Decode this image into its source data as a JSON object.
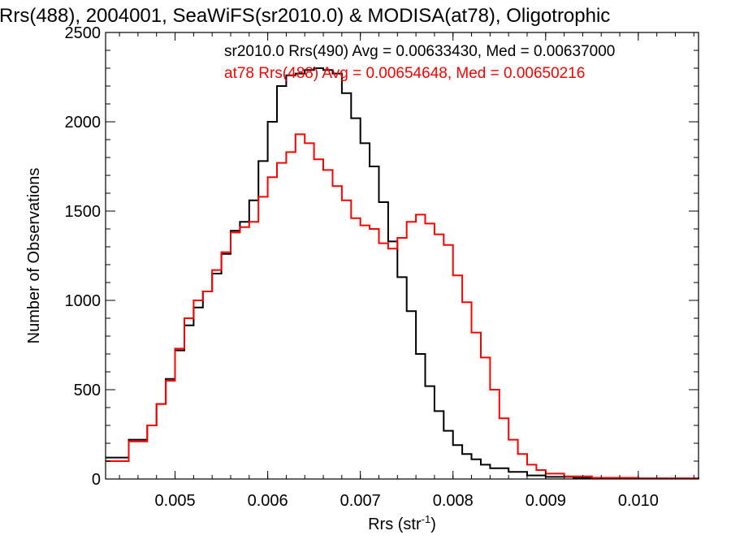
{
  "chart_data": {
    "type": "line",
    "title": "Rrs(488), 2004001, SeaWiFS(sr2010.0) & MODISA(at78), Oligotrophic",
    "xlabel": "Rrs (str",
    "xlabel_sup": "-1",
    "xlabel_end": ")",
    "ylabel": "Number of Observations",
    "xlim": [
      0.00425,
      0.01065
    ],
    "ylim": [
      0,
      2500
    ],
    "xticks": [
      0.005,
      0.006,
      0.007,
      0.008,
      0.009,
      0.01
    ],
    "xtick_labels": [
      "0.005",
      "0.006",
      "0.007",
      "0.008",
      "0.009",
      "0.010"
    ],
    "yticks": [
      0,
      500,
      1000,
      1500,
      2000,
      2500
    ],
    "ytick_labels": [
      "0",
      "500",
      "1000",
      "1500",
      "2000",
      "2500"
    ],
    "grid": false,
    "legend_placement": "top-right",
    "annotations": [
      {
        "text": "sr2010.0 Rrs(490) Avg = 0.00633430, Med = 0.00637000",
        "color": "#000000"
      },
      {
        "text": "at78 Rrs(488) Avg = 0.00654648, Med = 0.00650216",
        "color": "#ff0000"
      }
    ],
    "series": [
      {
        "color": "#000000",
        "points": [
          [
            0.00425,
            120
          ],
          [
            0.0045,
            220
          ],
          [
            0.0047,
            300
          ],
          [
            0.0048,
            420
          ],
          [
            0.0049,
            560
          ],
          [
            0.005,
            720
          ],
          [
            0.0051,
            860
          ],
          [
            0.0052,
            960
          ],
          [
            0.0053,
            1050
          ],
          [
            0.0054,
            1150
          ],
          [
            0.0055,
            1260
          ],
          [
            0.0056,
            1390
          ],
          [
            0.0057,
            1440
          ],
          [
            0.0058,
            1560
          ],
          [
            0.0059,
            1780
          ],
          [
            0.006,
            2000
          ],
          [
            0.0061,
            2200
          ],
          [
            0.0062,
            2260
          ],
          [
            0.0063,
            2270
          ],
          [
            0.0064,
            2290
          ],
          [
            0.0065,
            2300
          ],
          [
            0.0066,
            2290
          ],
          [
            0.0067,
            2270
          ],
          [
            0.0068,
            2160
          ],
          [
            0.0069,
            2020
          ],
          [
            0.007,
            1880
          ],
          [
            0.0071,
            1750
          ],
          [
            0.0072,
            1550
          ],
          [
            0.0073,
            1330
          ],
          [
            0.0074,
            1130
          ],
          [
            0.0075,
            940
          ],
          [
            0.0076,
            700
          ],
          [
            0.0077,
            520
          ],
          [
            0.0078,
            380
          ],
          [
            0.0079,
            270
          ],
          [
            0.008,
            190
          ],
          [
            0.0081,
            140
          ],
          [
            0.0082,
            110
          ],
          [
            0.0083,
            80
          ],
          [
            0.0084,
            60
          ],
          [
            0.0086,
            40
          ],
          [
            0.0088,
            20
          ],
          [
            0.009,
            12
          ],
          [
            0.0093,
            6
          ],
          [
            0.0097,
            3
          ],
          [
            0.01065,
            1
          ]
        ]
      },
      {
        "color": "#ff0000",
        "points": [
          [
            0.00425,
            100
          ],
          [
            0.0045,
            210
          ],
          [
            0.0047,
            300
          ],
          [
            0.0048,
            420
          ],
          [
            0.0049,
            550
          ],
          [
            0.005,
            730
          ],
          [
            0.0051,
            900
          ],
          [
            0.0052,
            1000
          ],
          [
            0.0053,
            1050
          ],
          [
            0.0054,
            1170
          ],
          [
            0.0055,
            1270
          ],
          [
            0.0056,
            1380
          ],
          [
            0.0057,
            1410
          ],
          [
            0.0058,
            1440
          ],
          [
            0.0059,
            1580
          ],
          [
            0.006,
            1690
          ],
          [
            0.0061,
            1770
          ],
          [
            0.0062,
            1830
          ],
          [
            0.0063,
            1930
          ],
          [
            0.0064,
            1880
          ],
          [
            0.0065,
            1790
          ],
          [
            0.0066,
            1730
          ],
          [
            0.0067,
            1640
          ],
          [
            0.0068,
            1560
          ],
          [
            0.0069,
            1460
          ],
          [
            0.007,
            1420
          ],
          [
            0.0071,
            1400
          ],
          [
            0.0072,
            1320
          ],
          [
            0.0073,
            1290
          ],
          [
            0.0074,
            1350
          ],
          [
            0.0075,
            1440
          ],
          [
            0.0076,
            1480
          ],
          [
            0.0077,
            1430
          ],
          [
            0.0078,
            1370
          ],
          [
            0.0079,
            1310
          ],
          [
            0.008,
            1140
          ],
          [
            0.0081,
            990
          ],
          [
            0.0082,
            820
          ],
          [
            0.0083,
            680
          ],
          [
            0.0084,
            500
          ],
          [
            0.0085,
            340
          ],
          [
            0.0086,
            220
          ],
          [
            0.0087,
            140
          ],
          [
            0.0088,
            80
          ],
          [
            0.0089,
            50
          ],
          [
            0.009,
            30
          ],
          [
            0.0092,
            15
          ],
          [
            0.0095,
            7
          ],
          [
            0.01,
            3
          ],
          [
            0.01065,
            1
          ]
        ]
      }
    ]
  }
}
